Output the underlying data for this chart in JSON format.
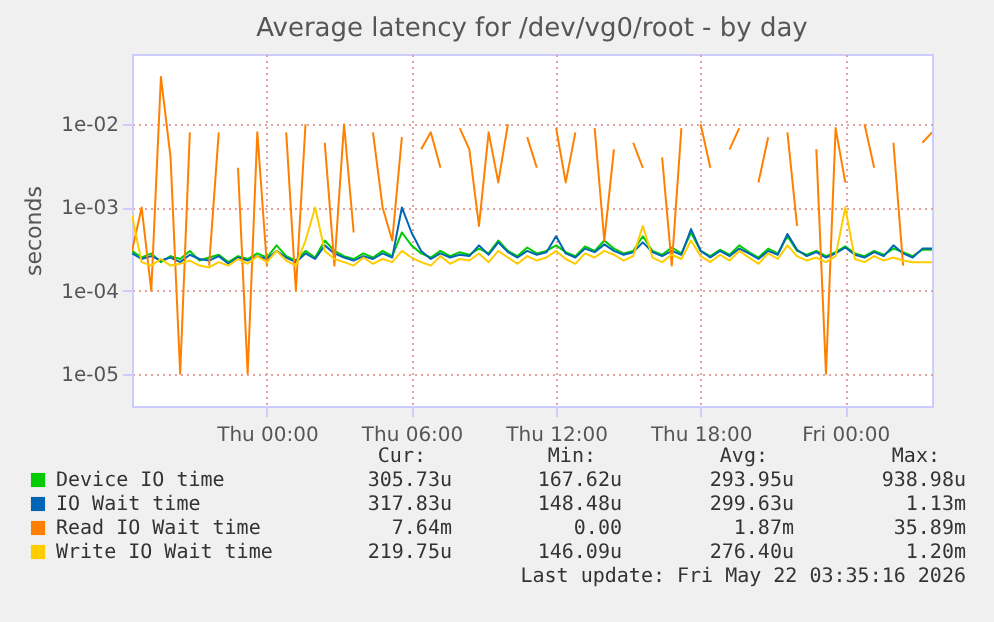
{
  "chart_data": {
    "type": "line",
    "title": "Average latency for /dev/vg0/root - by day",
    "ylabel": "seconds",
    "x": [
      "2026-05-20T18:24",
      "2026-05-20T18:48",
      "2026-05-20T19:12",
      "2026-05-20T19:36",
      "2026-05-20T20:00",
      "2026-05-20T20:24",
      "2026-05-20T20:48",
      "2026-05-20T21:12",
      "2026-05-20T21:36",
      "2026-05-20T22:00",
      "2026-05-20T22:24",
      "2026-05-20T22:48",
      "2026-05-20T23:12",
      "2026-05-20T23:36",
      "2026-05-21T00:00",
      "2026-05-21T00:24",
      "2026-05-21T00:48",
      "2026-05-21T01:12",
      "2026-05-21T01:36",
      "2026-05-21T02:00",
      "2026-05-21T02:24",
      "2026-05-21T02:48",
      "2026-05-21T03:12",
      "2026-05-21T03:36",
      "2026-05-21T04:00",
      "2026-05-21T04:24",
      "2026-05-21T04:48",
      "2026-05-21T05:12",
      "2026-05-21T05:36",
      "2026-05-21T06:00",
      "2026-05-21T06:24",
      "2026-05-21T06:48",
      "2026-05-21T07:12",
      "2026-05-21T07:36",
      "2026-05-21T08:00",
      "2026-05-21T08:24",
      "2026-05-21T08:48",
      "2026-05-21T09:12",
      "2026-05-21T09:36",
      "2026-05-21T10:00",
      "2026-05-21T10:24",
      "2026-05-21T10:48",
      "2026-05-21T11:12",
      "2026-05-21T11:36",
      "2026-05-21T12:00",
      "2026-05-21T12:24",
      "2026-05-21T12:48",
      "2026-05-21T13:12",
      "2026-05-21T13:36",
      "2026-05-21T14:00",
      "2026-05-21T14:24",
      "2026-05-21T14:48",
      "2026-05-21T15:12",
      "2026-05-21T15:36",
      "2026-05-21T16:00",
      "2026-05-21T16:24",
      "2026-05-21T16:48",
      "2026-05-21T17:12",
      "2026-05-21T17:36",
      "2026-05-21T18:00",
      "2026-05-21T18:24",
      "2026-05-21T18:48",
      "2026-05-21T19:12",
      "2026-05-21T19:36",
      "2026-05-21T20:00",
      "2026-05-21T20:24",
      "2026-05-21T20:48",
      "2026-05-21T21:12",
      "2026-05-21T21:36",
      "2026-05-21T22:00",
      "2026-05-21T22:24",
      "2026-05-21T22:48",
      "2026-05-21T23:12",
      "2026-05-21T23:36",
      "2026-05-22T00:00",
      "2026-05-22T00:24",
      "2026-05-22T00:48",
      "2026-05-22T01:12",
      "2026-05-22T01:36",
      "2026-05-22T02:00",
      "2026-05-22T02:24",
      "2026-05-22T02:48",
      "2026-05-22T03:12",
      "2026-05-22T03:36"
    ],
    "series": [
      {
        "name": "Device IO time",
        "color": "#00cc00",
        "values": [
          0.0003,
          0.00025,
          0.00028,
          0.00022,
          0.00026,
          0.00024,
          0.0003,
          0.00023,
          0.00025,
          0.00027,
          0.00022,
          0.00026,
          0.00024,
          0.00028,
          0.00025,
          0.00035,
          0.00026,
          0.00023,
          0.0003,
          0.00025,
          0.0004,
          0.0003,
          0.00026,
          0.00024,
          0.00028,
          0.00025,
          0.0003,
          0.00026,
          0.0005,
          0.00035,
          0.00028,
          0.00025,
          0.0003,
          0.00026,
          0.00029,
          0.00027,
          0.00032,
          0.00028,
          0.0004,
          0.0003,
          0.00026,
          0.00033,
          0.00028,
          0.0003,
          0.00035,
          0.00029,
          0.00026,
          0.00034,
          0.0003,
          0.0004,
          0.00032,
          0.00028,
          0.0003,
          0.00045,
          0.0003,
          0.00027,
          0.00033,
          0.00028,
          0.0005,
          0.0003,
          0.00026,
          0.00031,
          0.00027,
          0.00035,
          0.00029,
          0.00025,
          0.00032,
          0.00028,
          0.00045,
          0.0003,
          0.00027,
          0.0003,
          0.00026,
          0.00029,
          0.00034,
          0.00028,
          0.00026,
          0.0003,
          0.00027,
          0.00032,
          0.00029,
          0.00026,
          0.00031,
          0.00031
        ]
      },
      {
        "name": "IO Wait time",
        "color": "#0066b3",
        "values": [
          0.00028,
          0.00024,
          0.00026,
          0.00023,
          0.00025,
          0.00022,
          0.00027,
          0.00024,
          0.00023,
          0.00026,
          0.00021,
          0.00025,
          0.00023,
          0.00026,
          0.00024,
          0.0003,
          0.00025,
          0.00022,
          0.00028,
          0.00024,
          0.00035,
          0.00028,
          0.00025,
          0.00023,
          0.00026,
          0.00024,
          0.00028,
          0.00025,
          0.001,
          0.0005,
          0.0003,
          0.00024,
          0.00028,
          0.00025,
          0.00027,
          0.00026,
          0.00035,
          0.00027,
          0.00038,
          0.00029,
          0.00025,
          0.0003,
          0.00027,
          0.00029,
          0.00045,
          0.00028,
          0.00025,
          0.00032,
          0.00029,
          0.00036,
          0.0003,
          0.00027,
          0.00029,
          0.00038,
          0.00029,
          0.00026,
          0.0003,
          0.00027,
          0.00055,
          0.0003,
          0.00025,
          0.0003,
          0.00026,
          0.00032,
          0.00028,
          0.00024,
          0.0003,
          0.00027,
          0.00048,
          0.00031,
          0.00026,
          0.00029,
          0.00025,
          0.00028,
          0.00033,
          0.00027,
          0.00025,
          0.00029,
          0.00026,
          0.00035,
          0.00028,
          0.00025,
          0.00032,
          0.00032
        ]
      },
      {
        "name": "Read IO Wait time",
        "color": "#ff8000",
        "values": [
          0.0003,
          0.001,
          0.0001,
          0.037,
          0.004,
          1e-05,
          0.008,
          null,
          0.0002,
          0.008,
          null,
          0.003,
          1e-05,
          0.008,
          0.0002,
          null,
          0.008,
          0.0001,
          0.01,
          null,
          0.006,
          0.0002,
          0.01,
          0.0005,
          null,
          0.008,
          0.001,
          0.0004,
          0.007,
          null,
          0.005,
          0.008,
          0.003,
          null,
          0.009,
          0.005,
          0.0006,
          0.008,
          0.002,
          0.01,
          null,
          0.007,
          0.003,
          null,
          0.009,
          0.002,
          0.008,
          null,
          0.009,
          0.0004,
          0.005,
          null,
          0.006,
          0.003,
          null,
          0.004,
          0.0002,
          0.009,
          null,
          0.01,
          0.003,
          null,
          0.005,
          0.009,
          null,
          0.002,
          0.007,
          null,
          0.008,
          0.0006,
          null,
          0.005,
          1e-05,
          0.009,
          0.002,
          null,
          0.01,
          0.003,
          null,
          0.006,
          0.0002,
          null,
          0.006,
          0.008
        ]
      },
      {
        "name": "Write IO Wait time",
        "color": "#ffcc00",
        "values": [
          0.0008,
          0.00022,
          0.0002,
          0.00024,
          0.0002,
          0.00021,
          0.00023,
          0.0002,
          0.00019,
          0.00022,
          0.0002,
          0.00024,
          0.00021,
          0.00026,
          0.00022,
          0.0003,
          0.00023,
          0.0002,
          0.0004,
          0.001,
          0.0003,
          0.00024,
          0.00022,
          0.0002,
          0.00025,
          0.00021,
          0.00024,
          0.00022,
          0.0003,
          0.00025,
          0.00022,
          0.0002,
          0.00026,
          0.00021,
          0.00024,
          0.00023,
          0.00028,
          0.00022,
          0.0003,
          0.00025,
          0.00021,
          0.00026,
          0.00023,
          0.00025,
          0.0003,
          0.00024,
          0.00021,
          0.00028,
          0.00025,
          0.0003,
          0.00027,
          0.00023,
          0.00026,
          0.0006,
          0.00025,
          0.00022,
          0.00027,
          0.00024,
          0.0004,
          0.00026,
          0.00022,
          0.00027,
          0.00023,
          0.0003,
          0.00025,
          0.00021,
          0.00028,
          0.00024,
          0.00035,
          0.00026,
          0.00023,
          0.00025,
          0.00022,
          0.00026,
          0.001,
          0.00024,
          0.00022,
          0.00026,
          0.00023,
          0.00025,
          0.00023,
          0.00022,
          0.00022,
          0.00022
        ]
      }
    ],
    "xlim": [
      "2026-05-20T18:24",
      "2026-05-22T03:36"
    ],
    "xticks": [
      {
        "value": "2026-05-21T00:00",
        "label": "Thu 00:00"
      },
      {
        "value": "2026-05-21T06:00",
        "label": "Thu 06:00"
      },
      {
        "value": "2026-05-21T12:00",
        "label": "Thu 12:00"
      },
      {
        "value": "2026-05-21T18:00",
        "label": "Thu 18:00"
      },
      {
        "value": "2026-05-22T00:00",
        "label": "Fri 00:00"
      }
    ],
    "ylim": [
      4.1e-06,
      0.07
    ],
    "yticks": [
      {
        "value": 1e-05,
        "label": "1e-05"
      },
      {
        "value": 0.0001,
        "label": "1e-04"
      },
      {
        "value": 0.001,
        "label": "1e-03"
      },
      {
        "value": 0.01,
        "label": "1e-02"
      }
    ],
    "log": "y",
    "grid": true,
    "legend": "bottom left",
    "annotations": [
      "Cur:",
      "Min:",
      "Avg:",
      "Max:",
      "305.73u",
      "167.62u",
      "293.95u",
      "938.98u",
      "317.83u",
      "148.48u",
      "299.63u",
      "1.13m",
      "7.64m",
      "0.00",
      "1.87m",
      "35.89m",
      "219.75u",
      "146.09u",
      "276.40u",
      "1.20m",
      "Last update: Fri May 22 03:35:16 2026"
    ]
  }
}
